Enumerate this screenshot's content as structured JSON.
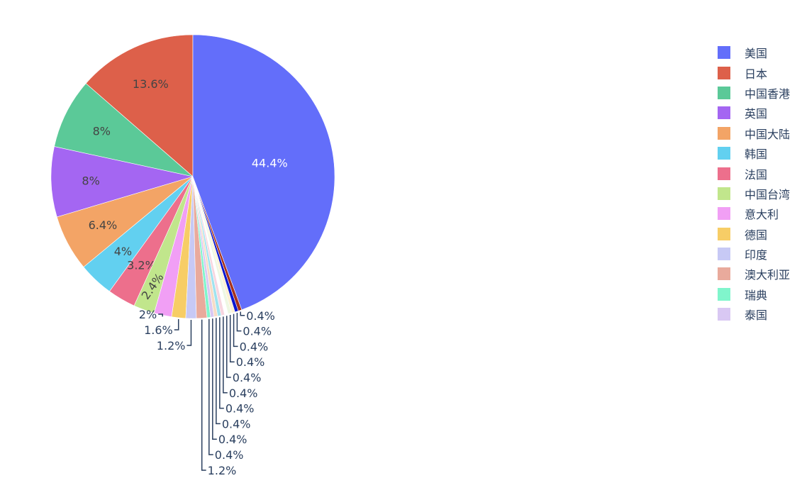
{
  "chart_data": {
    "type": "pie",
    "direction": "counterclockwise",
    "legend_position": "right",
    "legend_visible_count": 14,
    "slices": [
      {
        "name": "日本",
        "value": 13.6,
        "label": "13.6%",
        "color": "#dd604a"
      },
      {
        "name": "中国香港",
        "value": 8,
        "label": "8%",
        "color": "#5bc998"
      },
      {
        "name": "英国",
        "value": 8,
        "label": "8%",
        "color": "#a466f2"
      },
      {
        "name": "中国大陆",
        "value": 6.4,
        "label": "6.4%",
        "color": "#f3a466"
      },
      {
        "name": "韩国",
        "value": 4,
        "label": "4%",
        "color": "#62d0f0"
      },
      {
        "name": "法国",
        "value": 3.2,
        "label": "3.2%",
        "color": "#ed6f8c"
      },
      {
        "name": "中国台湾",
        "value": 2.4,
        "label": "2.4%",
        "color": "#c1e68c"
      },
      {
        "name": "意大利",
        "value": 2,
        "label": "2%",
        "color": "#f19ff5"
      },
      {
        "name": "德国",
        "value": 1.6,
        "label": "1.6%",
        "color": "#f7cd66"
      },
      {
        "name": "印度",
        "value": 1.2,
        "label": "1.2%",
        "color": "#c7c9f5"
      },
      {
        "name": "澳大利亚",
        "value": 1.2,
        "label": "1.2%",
        "color": "#e9aa9c"
      },
      {
        "name": "瑞典",
        "value": 0.4,
        "label": "0.4%",
        "color": "#80f5cc"
      },
      {
        "name": "泰国",
        "value": 0.4,
        "label": "0.4%",
        "color": "#d9c8f3"
      },
      {
        "name": "",
        "value": 0.4,
        "label": "0.4%",
        "color": "#f7dcc6"
      },
      {
        "name": "",
        "value": 0.4,
        "label": "0.4%",
        "color": "#9fe3ef"
      },
      {
        "name": "",
        "value": 0.4,
        "label": "0.4%",
        "color": "#f7d6e0"
      },
      {
        "name": "",
        "value": 0.4,
        "label": "0.4%",
        "color": "#ffffff"
      },
      {
        "name": "",
        "value": 0.4,
        "label": "0.4%",
        "color": "#eef7e2"
      },
      {
        "name": "",
        "value": 0.4,
        "label": "0.4%",
        "color": "#fcf0d2"
      },
      {
        "name": "",
        "value": 0.4,
        "label": "0.4%",
        "color": "#0a16d0"
      },
      {
        "name": "",
        "value": 0.4,
        "label": "0.4%",
        "color": "#a5321e"
      },
      {
        "name": "美国",
        "value": 44.4,
        "label": "44.4%",
        "color": "#636efa"
      }
    ],
    "legend_order": [
      "美国",
      "日本",
      "中国香港",
      "英国",
      "中国大陆",
      "韩国",
      "法国",
      "中国台湾",
      "意大利",
      "德国",
      "印度",
      "澳大利亚",
      "瑞典",
      "泰国"
    ]
  }
}
